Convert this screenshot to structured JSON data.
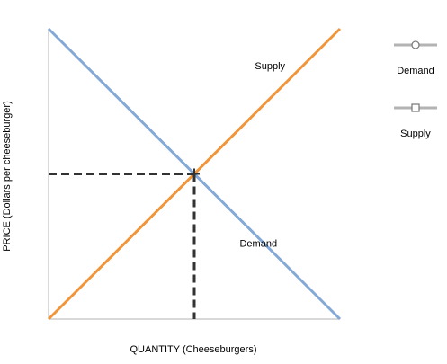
{
  "chart_data": {
    "type": "line",
    "xlabel": "QUANTITY (Cheeseburgers)",
    "ylabel": "PRICE (Dollars per cheeseburger)",
    "xlim": [
      0,
      10
    ],
    "ylim": [
      0,
      10
    ],
    "grid": false,
    "legend_position": "right",
    "series": [
      {
        "name": "Demand",
        "color": "#84A9D6",
        "marker": "circle",
        "x": [
          0,
          10
        ],
        "y": [
          10,
          0
        ],
        "line_label": "Demand",
        "label_at": [
          7.2,
          2.5
        ]
      },
      {
        "name": "Supply",
        "color": "#F1953A",
        "marker": "square",
        "x": [
          0,
          10
        ],
        "y": [
          0,
          10
        ],
        "line_label": "Supply",
        "label_at": [
          7.6,
          8.6
        ]
      }
    ],
    "equilibrium": {
      "x": 5,
      "y": 5,
      "style": "dashed",
      "color": "#333333"
    },
    "legend": [
      {
        "label": "Demand",
        "marker": "circle"
      },
      {
        "label": "Supply",
        "marker": "square"
      }
    ]
  }
}
